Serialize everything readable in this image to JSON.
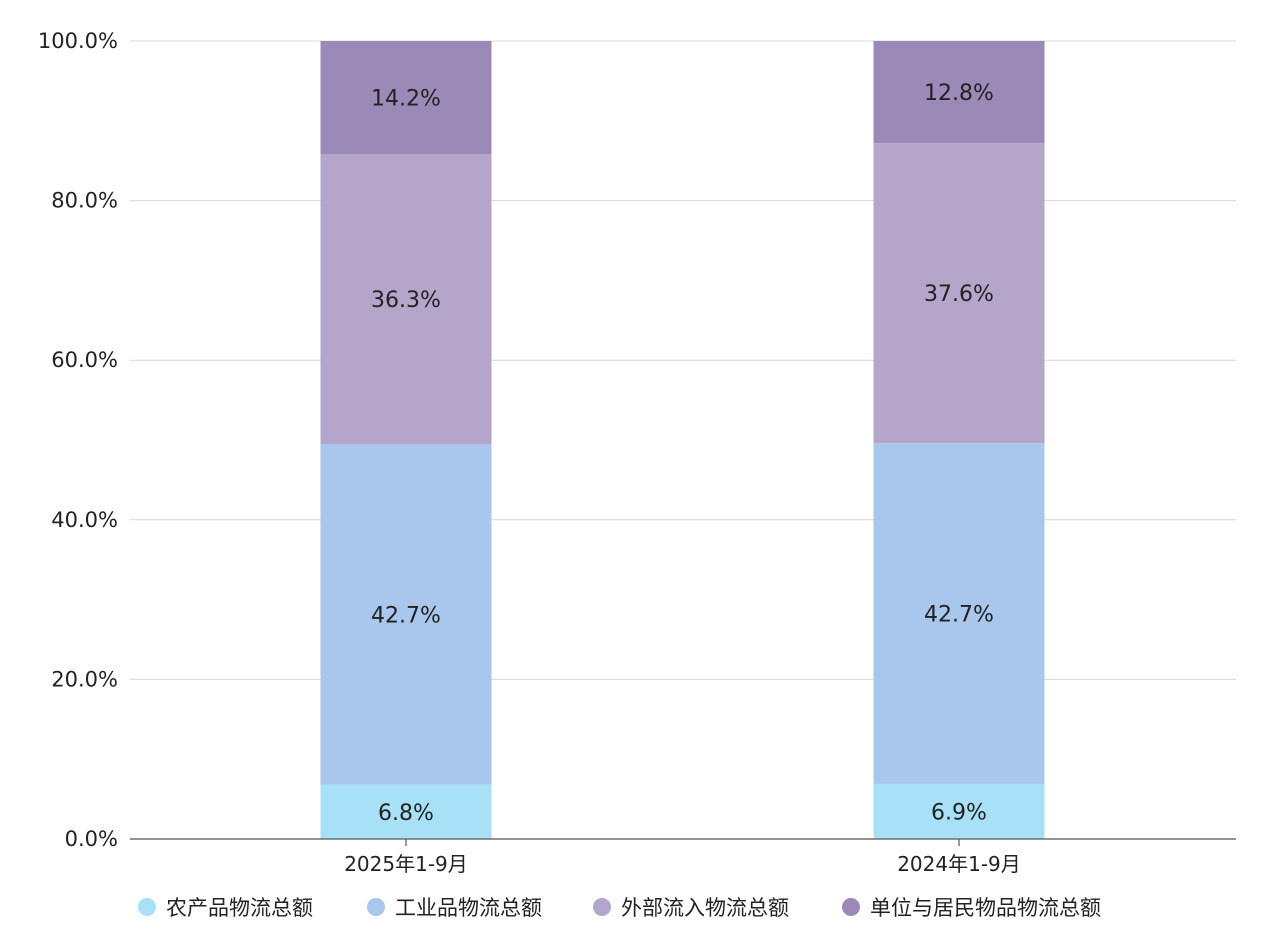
{
  "chart_data": {
    "type": "bar",
    "stacked": true,
    "title": "",
    "xlabel": "",
    "ylabel": "",
    "ylim": [
      0,
      100
    ],
    "yticks": [
      "0.0%",
      "20.0%",
      "40.0%",
      "60.0%",
      "80.0%",
      "100.0%"
    ],
    "ytick_values": [
      0,
      20,
      40,
      60,
      80,
      100
    ],
    "categories": [
      "2025年1-9月",
      "2024年1-9月"
    ],
    "series": [
      {
        "name": "农产品物流总额",
        "color": "#a8e0f8",
        "values": [
          6.8,
          6.9
        ],
        "labels": [
          "6.8%",
          "6.9%"
        ]
      },
      {
        "name": "工业品物流总额",
        "color": "#a9c7ec",
        "values": [
          42.7,
          42.7
        ],
        "labels": [
          "42.7%",
          "42.7%"
        ]
      },
      {
        "name": "外部流入物流总额",
        "color": "#b4a5ca",
        "values": [
          36.3,
          37.6
        ],
        "labels": [
          "36.3%",
          "37.6%"
        ]
      },
      {
        "name": "单位与居民物品物流总额",
        "color": "#9b89b7",
        "values": [
          14.2,
          12.8
        ],
        "labels": [
          "14.2%",
          "12.8%"
        ]
      }
    ],
    "grid": true,
    "legend_position": "bottom"
  }
}
